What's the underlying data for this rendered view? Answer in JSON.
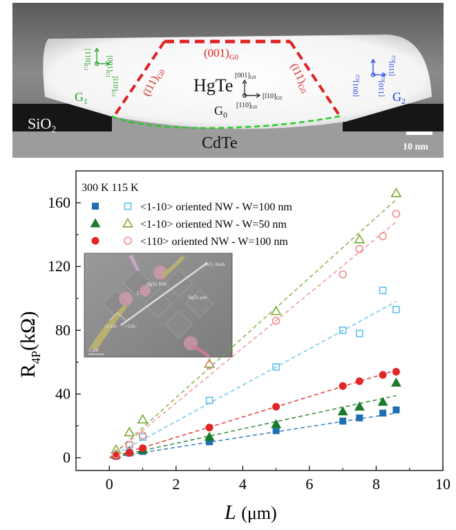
{
  "tem": {
    "labels": {
      "sio2": "SiO",
      "sio2_sub": "2",
      "hgte": "HgTe",
      "cdte": "CdTe",
      "g0": "G",
      "g0_sub": "0",
      "g1": "G",
      "g1_sub": "1",
      "g2": "G",
      "g2_sub": "2",
      "scale_bar": "10 nm",
      "top_facet": "(001)",
      "top_facet_sub": "G0",
      "left_facet": "(ī11)",
      "left_facet_sub": "G0",
      "right_facet": "(ī11)",
      "right_facet_sub": "G0",
      "g0_axis_up": "[001]",
      "g0_axis_up_sub": "G0",
      "g0_axis_right": "[ī10]",
      "g0_axis_right_sub": "G0",
      "g0_axis_out": "[110]",
      "g0_axis_out_sub": "G0",
      "g1_axis_a": "[001]",
      "g1_axis_a_sub": "G1",
      "g1_axis_b": "[110]",
      "g1_axis_b_sub": "G1",
      "g1_axis_c": "[ī10]",
      "g1_axis_c_sub": "G1",
      "g2_axis_a": "[001]",
      "g2_axis_a_sub": "G2",
      "g2_axis_b": "[ī10]",
      "g2_axis_b_sub": "G2",
      "g2_axis_c": "[110]",
      "g2_axis_c_sub": "G2"
    },
    "colors": {
      "g0": "#e02020",
      "g1": "#22a022",
      "g2": "#2040e0",
      "interface": "#22cc22"
    }
  },
  "chart_data": {
    "type": "scatter",
    "xlabel": "L",
    "xlabel_unit": "(μm)",
    "ylabel": "R",
    "ylabel_sub": "4P",
    "ylabel_unit": "(kΩ)",
    "xlim": [
      -1,
      10
    ],
    "ylim": [
      -8,
      180
    ],
    "xticks": [
      0,
      2,
      4,
      6,
      8,
      10
    ],
    "yticks": [
      0,
      40,
      80,
      120,
      160
    ],
    "legend_header": "300 K 115 K",
    "legend_placement": "top-left",
    "series": [
      {
        "name": "<1-10> oriented NW - W=100 nm",
        "temperature": "300 K",
        "marker": "square-filled",
        "color": "#1f6fb2",
        "x": [
          0.2,
          0.6,
          1.0,
          3.0,
          5.0,
          7.0,
          7.5,
          8.2,
          8.6
        ],
        "y": [
          1,
          3,
          4,
          10,
          17,
          23,
          25,
          28,
          30
        ],
        "fit": [
          [
            0,
            0
          ],
          [
            8.6,
            28
          ]
        ]
      },
      {
        "name": "<1-10> oriented NW - W=100 nm",
        "temperature": "115 K",
        "marker": "square-open",
        "color": "#5fc0ee",
        "x": [
          0.6,
          1.0,
          3.0,
          5.0,
          7.0,
          7.5,
          8.2,
          8.6
        ],
        "y": [
          8,
          13,
          36,
          57,
          80,
          78,
          105,
          93
        ],
        "fit": [
          [
            0,
            0
          ],
          [
            8.6,
            98
          ]
        ]
      },
      {
        "name": "<1-10> oriented NW - W=50 nm",
        "temperature": "300 K",
        "marker": "triangle-filled",
        "color": "#1a7a2a",
        "x": [
          0.2,
          0.6,
          1.0,
          3.0,
          5.0,
          7.0,
          7.5,
          8.2,
          8.6
        ],
        "y": [
          2,
          4,
          5,
          13,
          21,
          29,
          32,
          35,
          47
        ],
        "fit": [
          [
            0,
            0
          ],
          [
            8.6,
            39
          ]
        ]
      },
      {
        "name": "<1-10> oriented NW - W=50 nm",
        "temperature": "115 K",
        "marker": "triangle-open",
        "color": "#7aaa32",
        "x": [
          0.2,
          0.6,
          1.0,
          3.0,
          5.0,
          7.5,
          8.6
        ],
        "y": [
          5,
          16,
          24,
          59,
          92,
          137,
          166
        ],
        "fit": [
          [
            0,
            0
          ],
          [
            8.6,
            162
          ]
        ]
      },
      {
        "name": "<110> oriented NW - W=100 nm",
        "temperature": "300 K",
        "marker": "circle-filled",
        "color": "#e02626",
        "x": [
          0.2,
          0.6,
          1.0,
          3.0,
          5.0,
          7.0,
          7.5,
          8.2,
          8.6
        ],
        "y": [
          1,
          3,
          6,
          19,
          32,
          45,
          48,
          52,
          54
        ],
        "fit": [
          [
            0,
            0
          ],
          [
            8.6,
            55
          ]
        ]
      },
      {
        "name": "<110> oriented NW - W=100 nm",
        "temperature": "115 K",
        "marker": "circle-open",
        "color": "#f28a8a",
        "x": [
          0.2,
          0.6,
          1.0,
          3.0,
          5.0,
          7.0,
          7.5,
          8.2,
          8.6
        ],
        "y": [
          2,
          8,
          14,
          58,
          86,
          115,
          131,
          139,
          153
        ],
        "fit": [
          [
            0,
            0
          ],
          [
            8.6,
            148
          ]
        ]
      }
    ],
    "legend": [
      {
        "label": "<1-10> oriented NW - W=100 nm",
        "marker_300": "square-filled",
        "marker_115": "square-open",
        "color_300": "#1f6fb2",
        "color_115": "#5fc0ee"
      },
      {
        "label": "<1-10> oriented NW - W=50 nm",
        "marker_300": "triangle-filled",
        "marker_115": "triangle-open",
        "color_300": "#1a7a2a",
        "color_115": "#7aaa32"
      },
      {
        "label": "<110> oriented NW - W=100 nm",
        "marker_300": "circle-filled",
        "marker_115": "circle-open",
        "color_300": "#e02626",
        "color_115": "#f28a8a"
      }
    ],
    "inset": {
      "labels": {
        "sio2_mask": "SiO₂ mask",
        "nw": "HgTe NW",
        "pad": "HgTe pad",
        "l": "L",
        "dir_a": "<1-10>",
        "dir_b": "<110>",
        "scale": "2 μm"
      }
    }
  }
}
